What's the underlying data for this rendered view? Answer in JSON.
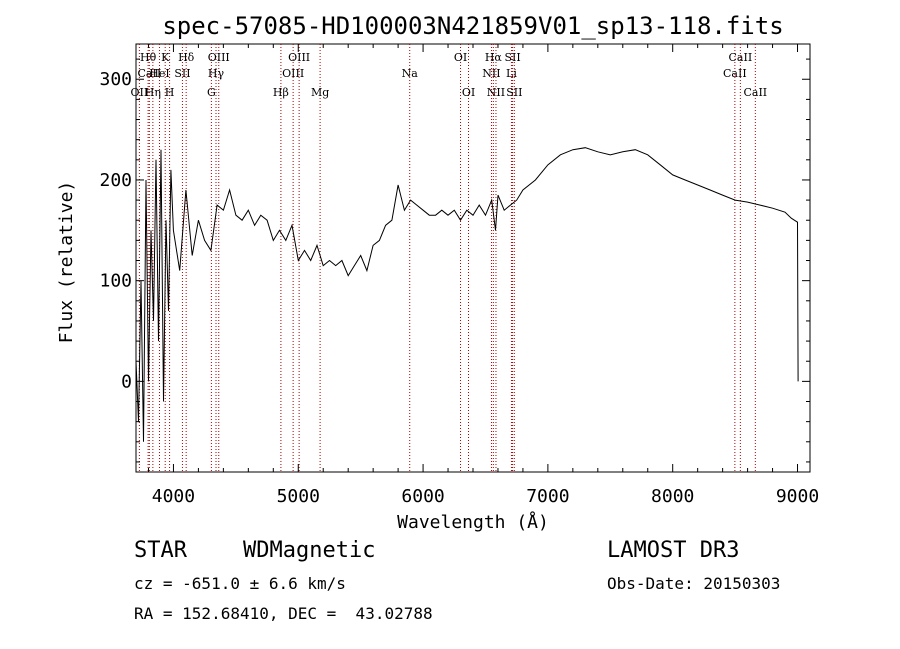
{
  "chart_data": {
    "type": "line",
    "title": "spec-57085-HD100003N421859V01_sp13-118.fits",
    "xlabel": "Wavelength (Å)",
    "ylabel": "Flux (relative)",
    "xlim": [
      3700,
      9100
    ],
    "ylim": [
      -90,
      335
    ],
    "xticks": [
      4000,
      5000,
      6000,
      7000,
      8000,
      9000
    ],
    "yticks": [
      0,
      100,
      200,
      300
    ],
    "series": [
      {
        "name": "Flux",
        "color": "#000000",
        "x": [
          3700,
          3720,
          3740,
          3760,
          3780,
          3800,
          3820,
          3840,
          3860,
          3880,
          3900,
          3920,
          3940,
          3960,
          3980,
          4000,
          4050,
          4100,
          4150,
          4200,
          4250,
          4300,
          4350,
          4400,
          4450,
          4500,
          4550,
          4600,
          4650,
          4700,
          4750,
          4800,
          4850,
          4900,
          4950,
          5000,
          5050,
          5100,
          5150,
          5200,
          5250,
          5300,
          5350,
          5400,
          5450,
          5500,
          5550,
          5600,
          5650,
          5700,
          5750,
          5800,
          5850,
          5900,
          5950,
          6000,
          6050,
          6100,
          6150,
          6200,
          6250,
          6300,
          6350,
          6400,
          6450,
          6500,
          6550,
          6580,
          6600,
          6650,
          6700,
          6750,
          6800,
          6900,
          7000,
          7100,
          7200,
          7300,
          7400,
          7500,
          7600,
          7700,
          7800,
          7900,
          8000,
          8100,
          8200,
          8300,
          8400,
          8500,
          8600,
          8700,
          8800,
          8900,
          8950,
          9000,
          9005
        ],
        "y": [
          20,
          -40,
          100,
          -60,
          200,
          0,
          150,
          60,
          220,
          40,
          230,
          -20,
          160,
          70,
          210,
          150,
          110,
          190,
          125,
          160,
          140,
          130,
          175,
          170,
          190,
          165,
          160,
          170,
          155,
          165,
          160,
          140,
          150,
          140,
          155,
          120,
          130,
          120,
          135,
          115,
          120,
          115,
          120,
          105,
          115,
          125,
          110,
          135,
          140,
          155,
          160,
          195,
          170,
          180,
          175,
          170,
          165,
          165,
          170,
          165,
          170,
          160,
          170,
          165,
          175,
          165,
          180,
          150,
          185,
          170,
          175,
          180,
          190,
          200,
          215,
          225,
          230,
          232,
          228,
          225,
          228,
          230,
          225,
          215,
          205,
          200,
          195,
          190,
          185,
          180,
          178,
          175,
          172,
          168,
          162,
          158,
          0
        ]
      }
    ],
    "line_markers": [
      {
        "label": "Hθ",
        "x": 3797,
        "row": 1
      },
      {
        "label": "CaII",
        "x": 3807,
        "row": 2
      },
      {
        "label": "OII",
        "x": 3727,
        "row": 3
      },
      {
        "label": "Hη",
        "x": 3835,
        "row": 3
      },
      {
        "label": "K",
        "x": 3934,
        "row": 1
      },
      {
        "label": "HeI",
        "x": 3888,
        "row": 2
      },
      {
        "label": "H",
        "x": 3969,
        "row": 3
      },
      {
        "label": "Hδ",
        "x": 4102,
        "row": 1
      },
      {
        "label": "SII",
        "x": 4072,
        "row": 2
      },
      {
        "label": "OIII",
        "x": 4363,
        "row": 1
      },
      {
        "label": "Hγ",
        "x": 4341,
        "row": 2
      },
      {
        "label": "G",
        "x": 4304,
        "row": 3
      },
      {
        "label": "Hβ",
        "x": 4861,
        "row": 3
      },
      {
        "label": "OIII",
        "x": 5007,
        "row": 1
      },
      {
        "label": "OIII",
        "x": 4959,
        "row": 2
      },
      {
        "label": "Mg",
        "x": 5175,
        "row": 3
      },
      {
        "label": "Na",
        "x": 5893,
        "row": 2
      },
      {
        "label": "OI",
        "x": 6300,
        "row": 1
      },
      {
        "label": "OI",
        "x": 6364,
        "row": 3
      },
      {
        "label": "Hα",
        "x": 6563,
        "row": 1
      },
      {
        "label": "NII",
        "x": 6548,
        "row": 2
      },
      {
        "label": "NII",
        "x": 6584,
        "row": 3
      },
      {
        "label": "SII",
        "x": 6717,
        "row": 1
      },
      {
        "label": "Li",
        "x": 6708,
        "row": 2
      },
      {
        "label": "SII",
        "x": 6731,
        "row": 3
      },
      {
        "label": "CaII",
        "x": 8542,
        "row": 1
      },
      {
        "label": "CaII",
        "x": 8498,
        "row": 2
      },
      {
        "label": "CaII",
        "x": 8662,
        "row": 3
      }
    ]
  },
  "info": {
    "object_class": "STAR",
    "subclass": "WDMagnetic",
    "survey": "LAMOST DR3",
    "cz": "cz = -651.0 ± 6.6 km/s",
    "obs_date": "Obs-Date: 20150303",
    "coords": "RA = 152.68410, DEC =  43.02788"
  }
}
